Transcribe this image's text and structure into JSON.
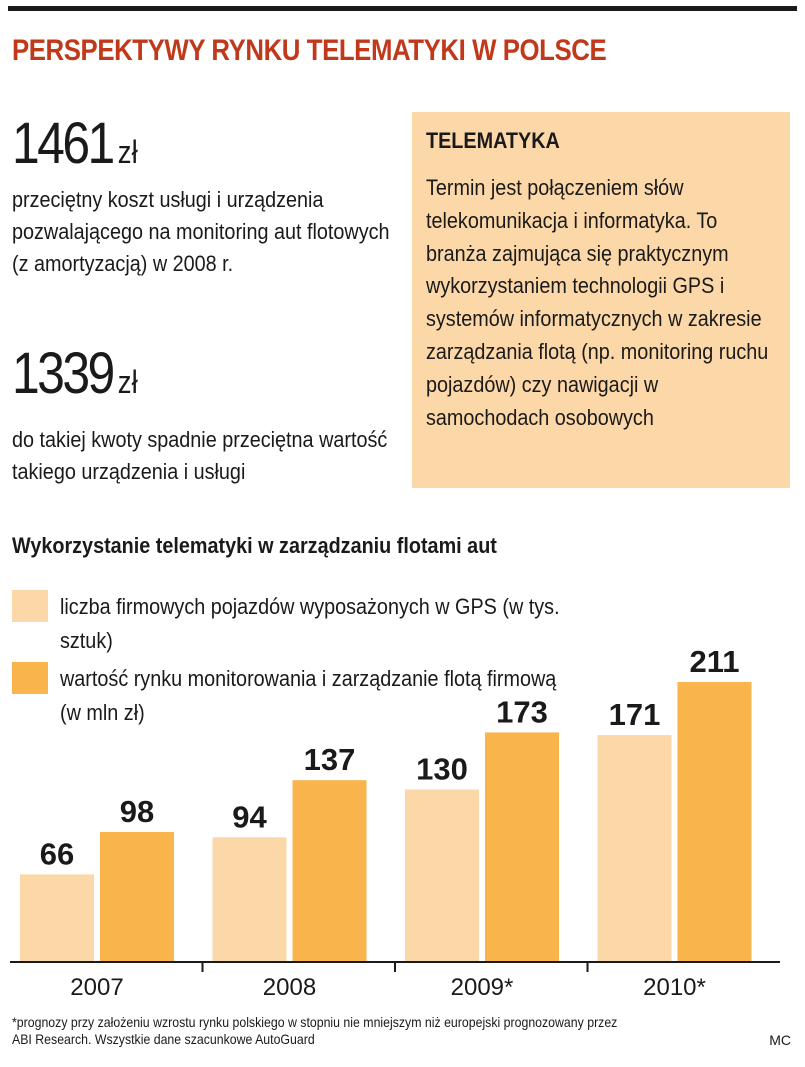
{
  "header": {
    "title": "PERSPEKTYWY RYNKU TELEMATYKI W POLSCE"
  },
  "stats": [
    {
      "value": "1461",
      "unit": "zł",
      "description": "przeciętny koszt usługi i urządzenia pozwalającego na monitoring aut flotowych (z amortyzacją) w 2008 r."
    },
    {
      "value": "1339",
      "unit": "zł",
      "description": "do takiej kwoty spadnie przeciętna wartość takiego urządzenia i usługi"
    }
  ],
  "infobox": {
    "title": "TELEMATYKA",
    "body": "Termin jest połączeniem słów telekomunikacja i informatyka. To branża zajmująca się praktycznym wykorzystaniem technologii GPS i systemów informatycznych w zakresie zarządzania flotą (np. monitoring ruchu pojazdów) czy nawigacji w samochodach osobowych"
  },
  "colors": {
    "headline": "#c0391b",
    "infobox_bg": "#fcd7a8",
    "series_light": "#fcd7a8",
    "series_dark": "#f9b44b"
  },
  "chart_data": {
    "type": "bar",
    "title": "Wykorzystanie telematyki w zarządzaniu flotami aut",
    "categories": [
      "2007",
      "2008",
      "2009*",
      "2010*"
    ],
    "series": [
      {
        "name": "liczba firmowych pojazdów wyposażonych w GPS (w tys. sztuk)",
        "values": [
          66,
          94,
          130,
          171
        ],
        "color": "#fcd7a8"
      },
      {
        "name": "wartość rynku monitorowania i zarządzanie flotą firmową (w mln zł)",
        "values": [
          98,
          137,
          173,
          211
        ],
        "color": "#f9b44b"
      }
    ],
    "ylim": [
      0,
      211
    ],
    "grid": false,
    "legend": "top-left"
  },
  "footer": {
    "note": "*prognozy przy założeniu wzrostu rynku polskiego w stopniu nie mniejszym niż europejski prognozowany przez ABI Research. Wszystkie dane szacunkowe AutoGuard",
    "credit": "MC"
  }
}
